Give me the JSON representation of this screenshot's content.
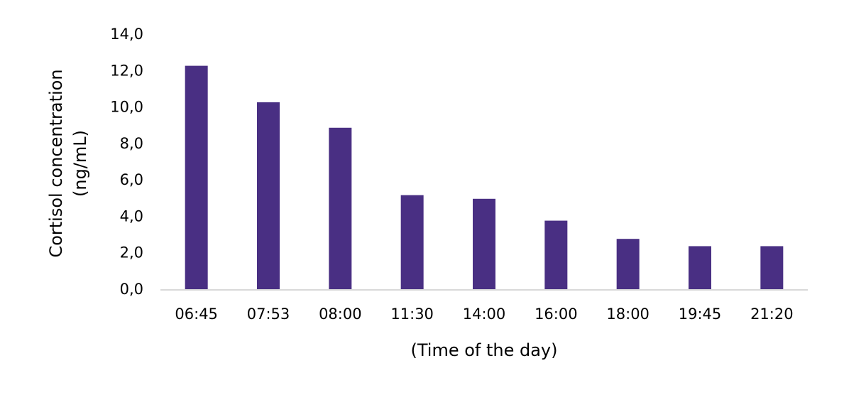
{
  "chart_data": {
    "type": "bar",
    "y_label": [
      "Cortisol concentration",
      "(ng/mL)"
    ],
    "x_label": "(Time of the day)",
    "categories": [
      "06:45",
      "07:53",
      "08:00",
      "11:30",
      "14:00",
      "16:00",
      "18:00",
      "19:45",
      "21:20"
    ],
    "values": [
      12.3,
      10.3,
      8.9,
      5.2,
      5.0,
      3.8,
      2.8,
      2.4,
      2.4
    ],
    "color": "#492f83",
    "ylim": [
      0,
      14
    ],
    "yticks": [
      {
        "value": 0,
        "label": "0,0"
      },
      {
        "value": 2,
        "label": "2,0"
      },
      {
        "value": 4,
        "label": "4,0"
      },
      {
        "value": 6,
        "label": "6,0"
      },
      {
        "value": 8,
        "label": "8,0"
      },
      {
        "value": 10,
        "label": "10,0"
      },
      {
        "value": 12,
        "label": "12,0"
      },
      {
        "value": 14,
        "label": "14,0"
      }
    ],
    "grid": false
  }
}
